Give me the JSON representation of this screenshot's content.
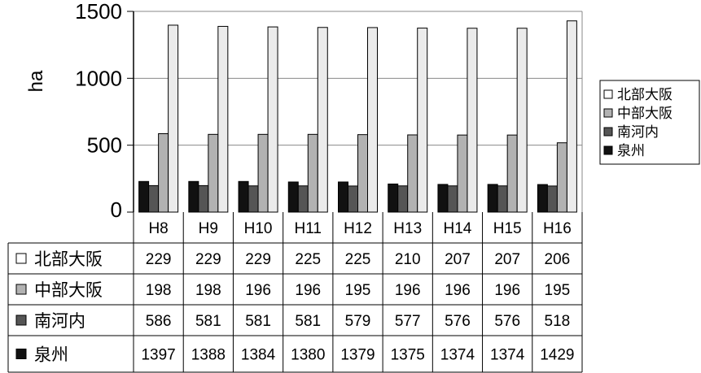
{
  "chart_data": {
    "type": "bar",
    "ylabel": "ha",
    "ylim": [
      0,
      1500
    ],
    "yticks": [
      0,
      500,
      1000,
      1500
    ],
    "grid": true,
    "legend_position": "right",
    "categories": [
      "H8",
      "H9",
      "H10",
      "H11",
      "H12",
      "H13",
      "H14",
      "H15",
      "H16"
    ],
    "series": [
      {
        "name": "北部大阪",
        "color": "#111111",
        "values": [
          229,
          229,
          229,
          225,
          225,
          210,
          207,
          207,
          206
        ]
      },
      {
        "name": "中部大阪",
        "color": "#555555",
        "values": [
          198,
          198,
          196,
          196,
          195,
          196,
          196,
          196,
          195
        ]
      },
      {
        "name": "南河内",
        "color": "#b2b2b2",
        "values": [
          586,
          581,
          581,
          581,
          579,
          577,
          576,
          576,
          518
        ]
      },
      {
        "name": "泉州",
        "color": "#ebebeb",
        "values": [
          1397,
          1388,
          1384,
          1380,
          1379,
          1375,
          1374,
          1374,
          1429
        ]
      }
    ],
    "table_rows": [
      {
        "label": "北部大阪",
        "marker": "#ffffff",
        "values": [
          229,
          229,
          229,
          225,
          225,
          210,
          207,
          207,
          206
        ]
      },
      {
        "label": "中部大阪",
        "marker": "#b2b2b2",
        "values": [
          198,
          198,
          196,
          196,
          195,
          196,
          196,
          196,
          195
        ]
      },
      {
        "label": "南河内",
        "marker": "#555555",
        "values": [
          586,
          581,
          581,
          581,
          579,
          577,
          576,
          576,
          518
        ]
      },
      {
        "label": "泉州",
        "marker": "#111111",
        "values": [
          1397,
          1388,
          1384,
          1380,
          1379,
          1375,
          1374,
          1374,
          1429
        ]
      }
    ],
    "legend": [
      {
        "label": "北部大阪",
        "marker": "#ffffff"
      },
      {
        "label": "中部大阪",
        "marker": "#b2b2b2"
      },
      {
        "label": "南河内",
        "marker": "#555555"
      },
      {
        "label": "泉州",
        "marker": "#111111"
      }
    ]
  }
}
